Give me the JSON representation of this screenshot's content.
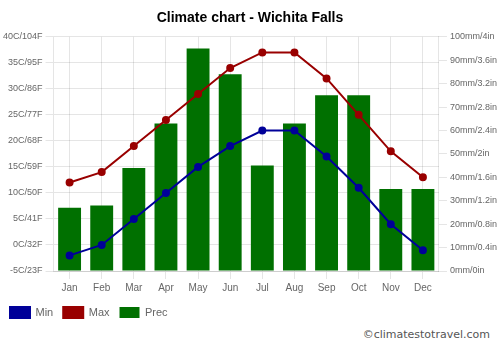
{
  "chart_data": {
    "type": "bar",
    "title": "Climate chart - Wichita Falls",
    "categories": [
      "Jan",
      "Feb",
      "Mar",
      "Apr",
      "May",
      "Jun",
      "Jul",
      "Aug",
      "Sep",
      "Oct",
      "Nov",
      "Dec"
    ],
    "series": [
      {
        "name": "Prec",
        "type": "bar",
        "axis": "y2",
        "color": "#007000",
        "values": [
          27,
          28,
          44,
          63,
          95,
          84,
          45,
          63,
          75,
          75,
          35,
          35
        ]
      },
      {
        "name": "Min",
        "type": "line",
        "marker": "circle",
        "color": "#000099",
        "values": [
          -2,
          0,
          5,
          10,
          15,
          19,
          22,
          22,
          17,
          11,
          4,
          -1
        ]
      },
      {
        "name": "Max",
        "type": "line",
        "marker": "circle",
        "color": "#990000",
        "values": [
          12,
          14,
          19,
          24,
          29,
          34,
          37,
          37,
          32,
          25,
          18,
          13
        ]
      }
    ],
    "ylim": [
      -5,
      40
    ],
    "yticks": [
      {
        "value": -5,
        "label": "-5C/23F"
      },
      {
        "value": 0,
        "label": "0C/32F"
      },
      {
        "value": 5,
        "label": "5C/41F"
      },
      {
        "value": 10,
        "label": "10C/50F"
      },
      {
        "value": 15,
        "label": "15C/59F"
      },
      {
        "value": 20,
        "label": "20C/68F"
      },
      {
        "value": 25,
        "label": "25C/77F"
      },
      {
        "value": 30,
        "label": "30C/86F"
      },
      {
        "value": 35,
        "label": "35C/95F"
      },
      {
        "value": 40,
        "label": "40C/104F"
      }
    ],
    "y2lim": [
      0,
      100
    ],
    "y2ticks": [
      {
        "value": 0,
        "label": "0mm/0in"
      },
      {
        "value": 10,
        "label": "10mm/0.4in"
      },
      {
        "value": 20,
        "label": "20mm/0.8in"
      },
      {
        "value": 30,
        "label": "30mm/1.2in"
      },
      {
        "value": 40,
        "label": "40mm/1.6in"
      },
      {
        "value": 50,
        "label": "50mm/2in"
      },
      {
        "value": 60,
        "label": "60mm/2.4in"
      },
      {
        "value": 70,
        "label": "70mm/2.8in"
      },
      {
        "value": 80,
        "label": "80mm/3.2in"
      },
      {
        "value": 90,
        "label": "90mm/3.6in"
      },
      {
        "value": 100,
        "label": "100mm/4in"
      }
    ],
    "grid": true,
    "legend": "bottom",
    "annotations": [
      "©climatestotravel.com"
    ]
  }
}
